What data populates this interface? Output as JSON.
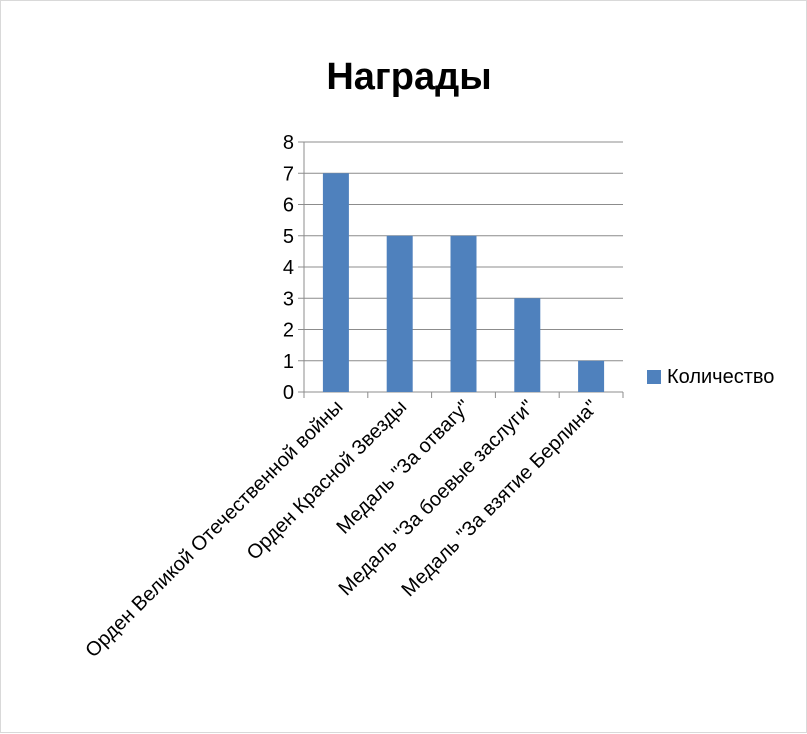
{
  "chart_data": {
    "type": "bar",
    "title": "Награды",
    "categories": [
      "Орден Великой Отечественной войны",
      "Орден Красной Звезды",
      "Медаль \"За отвагу\"",
      "Медаль \"За боевые заслуги\"",
      "Медаль \"За взятие Берлина\""
    ],
    "series": [
      {
        "name": "Количество",
        "values": [
          7,
          5,
          5,
          3,
          1
        ],
        "color": "#4F81BD"
      }
    ],
    "ylim": [
      0,
      8
    ],
    "yticks": [
      0,
      1,
      2,
      3,
      4,
      5,
      6,
      7,
      8
    ],
    "grid": true,
    "legend": "right"
  }
}
